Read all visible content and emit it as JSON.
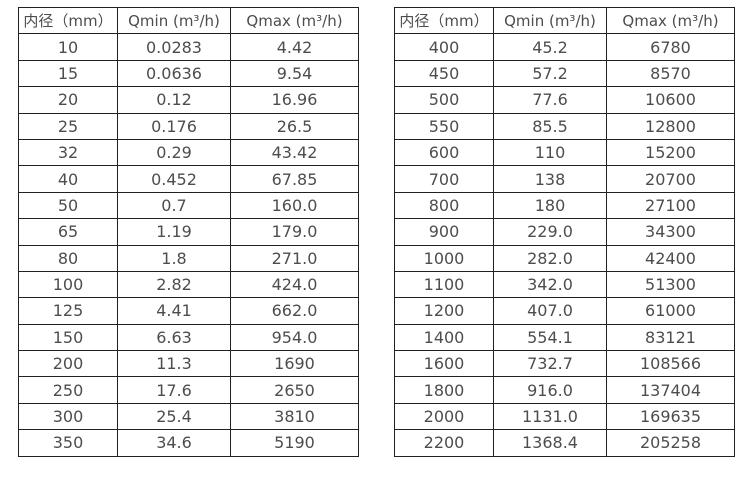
{
  "colors": {
    "text": "#4d4d4d",
    "border": "#212121",
    "background": "#ffffff"
  },
  "chart_data": [
    {
      "type": "table",
      "name": "flow-rates-small-diameters",
      "columns": [
        "内径（mm）",
        "Qmin (m³/h)",
        "Qmax (m³/h)"
      ],
      "rows": [
        [
          "10",
          "0.0283",
          "4.42"
        ],
        [
          "15",
          "0.0636",
          "9.54"
        ],
        [
          "20",
          "0.12",
          "16.96"
        ],
        [
          "25",
          "0.176",
          "26.5"
        ],
        [
          "32",
          "0.29",
          "43.42"
        ],
        [
          "40",
          "0.452",
          "67.85"
        ],
        [
          "50",
          "0.7",
          "160.0"
        ],
        [
          "65",
          "1.19",
          "179.0"
        ],
        [
          "80",
          "1.8",
          "271.0"
        ],
        [
          "100",
          "2.82",
          "424.0"
        ],
        [
          "125",
          "4.41",
          "662.0"
        ],
        [
          "150",
          "6.63",
          "954.0"
        ],
        [
          "200",
          "11.3",
          "1690"
        ],
        [
          "250",
          "17.6",
          "2650"
        ],
        [
          "300",
          "25.4",
          "3810"
        ],
        [
          "350",
          "34.6",
          "5190"
        ]
      ]
    },
    {
      "type": "table",
      "name": "flow-rates-large-diameters",
      "columns": [
        "内径（mm）",
        "Qmin (m³/h)",
        "Qmax (m³/h)"
      ],
      "rows": [
        [
          "400",
          "45.2",
          "6780"
        ],
        [
          "450",
          "57.2",
          "8570"
        ],
        [
          "500",
          "77.6",
          "10600"
        ],
        [
          "550",
          "85.5",
          "12800"
        ],
        [
          "600",
          "110",
          "15200"
        ],
        [
          "700",
          "138",
          "20700"
        ],
        [
          "800",
          "180",
          "27100"
        ],
        [
          "900",
          "229.0",
          "34300"
        ],
        [
          "1000",
          "282.0",
          "42400"
        ],
        [
          "1100",
          "342.0",
          "51300"
        ],
        [
          "1200",
          "407.0",
          "61000"
        ],
        [
          "1400",
          "554.1",
          "83121"
        ],
        [
          "1600",
          "732.7",
          "108566"
        ],
        [
          "1800",
          "916.0",
          "137404"
        ],
        [
          "2000",
          "1131.0",
          "169635"
        ],
        [
          "2200",
          "1368.4",
          "205258"
        ]
      ]
    }
  ]
}
